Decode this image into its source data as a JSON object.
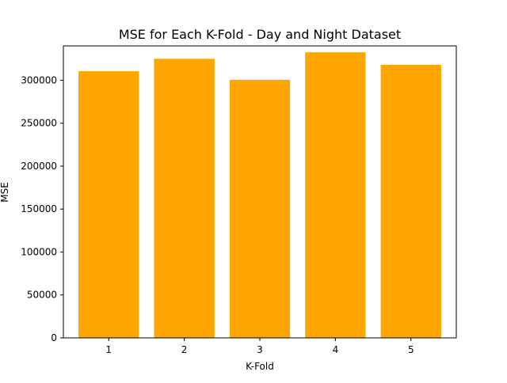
{
  "chart_data": {
    "type": "bar",
    "title": "MSE for Each K-Fold - Day and Night Dataset",
    "xlabel": "K-Fold",
    "ylabel": "MSE",
    "categories": [
      "1",
      "2",
      "3",
      "4",
      "5"
    ],
    "values": [
      310500,
      325000,
      300500,
      332500,
      318000
    ],
    "ylim": [
      0,
      340000
    ],
    "yticks": [
      0,
      50000,
      100000,
      150000,
      200000,
      250000,
      300000
    ],
    "ytick_labels": [
      "0",
      "50000",
      "100000",
      "150000",
      "200000",
      "250000",
      "300000"
    ],
    "bar_color": "#ffa500",
    "grid": false,
    "legend": "none"
  }
}
